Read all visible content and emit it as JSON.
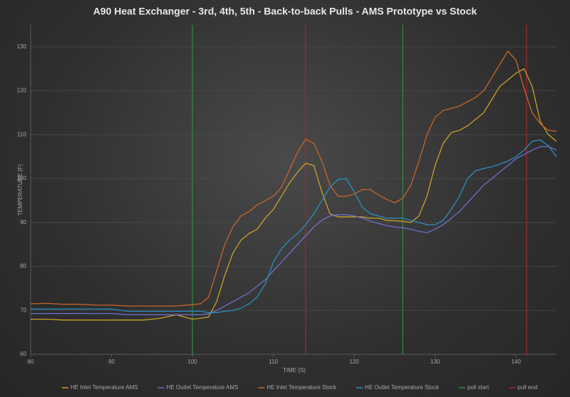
{
  "chart_data": {
    "type": "line",
    "title": "A90 Heat Exchanger - 3rd, 4th, 5th - Back-to-back Pulls - AMS Prototype vs Stock",
    "x_label": "TIME (S)",
    "y_label": "TEMPERATURE (F)",
    "xlim": [
      80,
      145
    ],
    "xticks": [
      80,
      90,
      100,
      110,
      120,
      130,
      140
    ],
    "ylim": [
      60,
      135
    ],
    "yticks": [
      60,
      70,
      80,
      90,
      100,
      110,
      120,
      130
    ],
    "grid": true,
    "legend": "bottom",
    "x": [
      80,
      82,
      84,
      86,
      88,
      90,
      92,
      94,
      96,
      98,
      100,
      101,
      102,
      103,
      104,
      105,
      106,
      107,
      108,
      109,
      110,
      111,
      112,
      113,
      114,
      115,
      116,
      117,
      118,
      119,
      120,
      121,
      122,
      123,
      124,
      125,
      126,
      127,
      128,
      129,
      130,
      131,
      132,
      133,
      134,
      135,
      136,
      137,
      138,
      139,
      140,
      141,
      142,
      143,
      144,
      145
    ],
    "series": [
      {
        "name": "HE Inlet Temperature AMS",
        "color": "#c9a227",
        "values": [
          68,
          68,
          67.8,
          67.8,
          67.8,
          67.8,
          67.8,
          67.8,
          68.2,
          69,
          68,
          68.2,
          68.5,
          72,
          78,
          83,
          86,
          87.5,
          88.5,
          91,
          93,
          96,
          99,
          101.5,
          103.5,
          103,
          97,
          92,
          91.3,
          91.3,
          91.3,
          91.3,
          91,
          91,
          90.5,
          90.4,
          90.3,
          90,
          91.5,
          96,
          103,
          108,
          110.5,
          111,
          112,
          113.5,
          115,
          118,
          121,
          122.5,
          124,
          125,
          121,
          113,
          110,
          108.5
        ]
      },
      {
        "name": "HE Outlet Temperature AMS",
        "color": "#6f6fd0",
        "values": [
          69.3,
          69.3,
          69.3,
          69.3,
          69.3,
          69.3,
          69,
          69,
          69,
          69,
          69,
          69,
          69.2,
          70,
          71,
          72,
          73,
          74,
          75.5,
          77,
          79,
          81,
          83,
          85,
          87,
          89,
          90.5,
          91.5,
          91.8,
          91.8,
          91.5,
          91,
          90.3,
          89.8,
          89.3,
          89,
          88.8,
          88.5,
          88,
          87.7,
          88.5,
          89.5,
          91,
          92.5,
          94.5,
          96.5,
          98.5,
          100,
          101.5,
          103,
          104.5,
          105.5,
          106.5,
          107.3,
          107.3,
          106.5
        ]
      },
      {
        "name": "HE Inlet Temperature Stock",
        "color": "#c8642a",
        "values": [
          71.5,
          71.6,
          71.4,
          71.4,
          71.2,
          71.2,
          71,
          71,
          71,
          71,
          71.3,
          71.5,
          73,
          79,
          85,
          89,
          91.5,
          92.5,
          94,
          95,
          96,
          98,
          102,
          106,
          109,
          108,
          104,
          98.5,
          96,
          96,
          96.5,
          97.5,
          97.5,
          96.3,
          95.3,
          94.5,
          95.5,
          98.5,
          104,
          110,
          114,
          115.5,
          116,
          116.5,
          117.5,
          118.5,
          120,
          123,
          126,
          129,
          127,
          120.5,
          115,
          112.5,
          111,
          110.8
        ]
      },
      {
        "name": "HE Outlet Temperature Stock",
        "color": "#2a8fc2",
        "values": [
          70.3,
          70.3,
          70.3,
          70.3,
          70.3,
          70.3,
          69.8,
          69.8,
          69.8,
          69.8,
          69.8,
          69.8,
          69.5,
          69.5,
          69.8,
          70,
          70.5,
          71.5,
          73,
          76,
          81,
          84,
          86,
          87.5,
          89.5,
          92,
          95,
          98,
          99.8,
          100,
          97,
          93.5,
          92,
          91.5,
          91,
          91,
          91,
          90.5,
          90,
          89.5,
          89.5,
          90.5,
          93,
          96,
          100,
          101.8,
          102.3,
          102.7,
          103.3,
          104,
          105,
          106.5,
          108.5,
          108.8,
          107.5,
          105
        ]
      }
    ],
    "markers": [
      {
        "name": "pull start",
        "color": "#2e8b3e",
        "x": [
          100,
          126
        ]
      },
      {
        "name": "pull end",
        "color": "#a8262c",
        "x": [
          114,
          141.3
        ]
      }
    ]
  }
}
